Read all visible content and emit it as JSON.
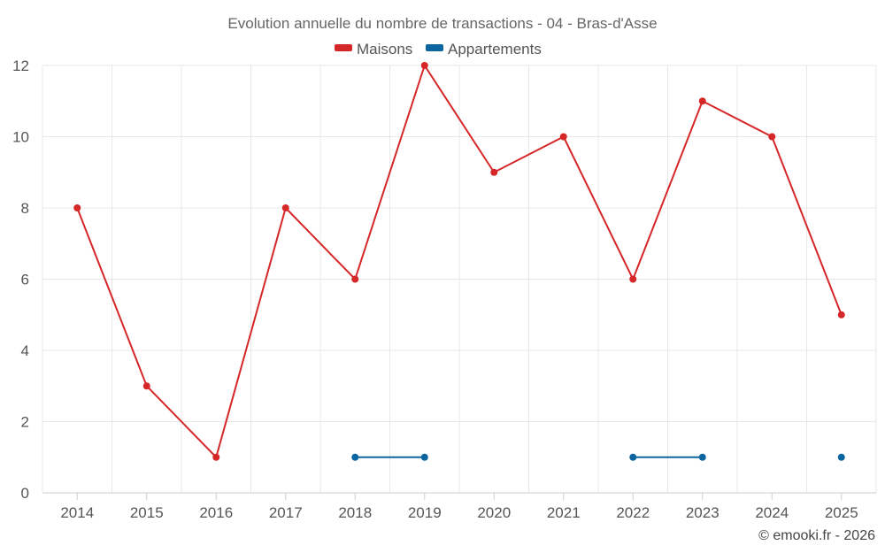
{
  "chart_data": {
    "type": "line",
    "title": "Evolution annuelle du nombre de transactions - 04 - Bras-d'Asse",
    "categories": [
      "2014",
      "2015",
      "2016",
      "2017",
      "2018",
      "2019",
      "2020",
      "2021",
      "2022",
      "2023",
      "2024",
      "2025"
    ],
    "series": [
      {
        "name": "Maisons",
        "color": "#d62728",
        "values": [
          8,
          3,
          1,
          8,
          6,
          12,
          9,
          10,
          6,
          11,
          10,
          5
        ]
      },
      {
        "name": "Appartements",
        "color": "#0b66a0",
        "values": [
          null,
          null,
          null,
          null,
          1,
          1,
          null,
          null,
          1,
          1,
          null,
          1
        ]
      }
    ],
    "ylim": [
      0,
      12
    ],
    "yticks": [
      0,
      2,
      4,
      6,
      8,
      10,
      12
    ],
    "grid": true,
    "legend_position": "top-center",
    "credit": "© emooki.fr - 2026"
  }
}
